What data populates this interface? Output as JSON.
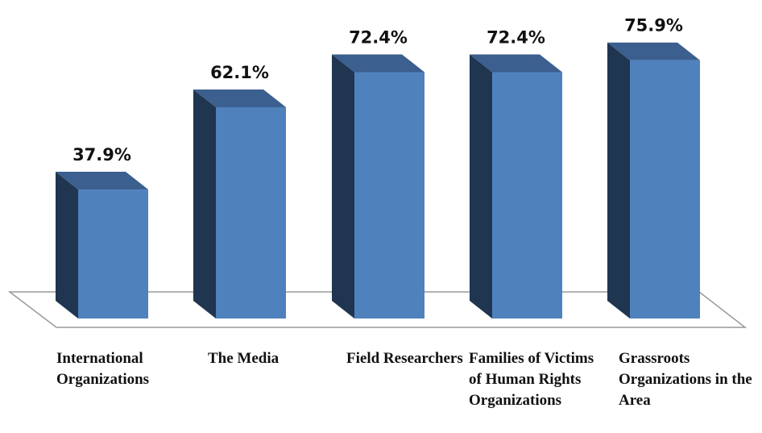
{
  "chart_data": {
    "type": "bar3d",
    "categories": [
      "International Organizations",
      "The Media",
      "Field Researchers",
      "Families of Victims of Human Rights Organizations",
      "Grassroots Organizations in the Area"
    ],
    "values": [
      37.9,
      62.1,
      72.4,
      72.4,
      75.9
    ],
    "value_labels": [
      "37.9%",
      "62.1%",
      "72.4%",
      "72.4%",
      "75.9%"
    ],
    "color": "#4f81bd"
  }
}
